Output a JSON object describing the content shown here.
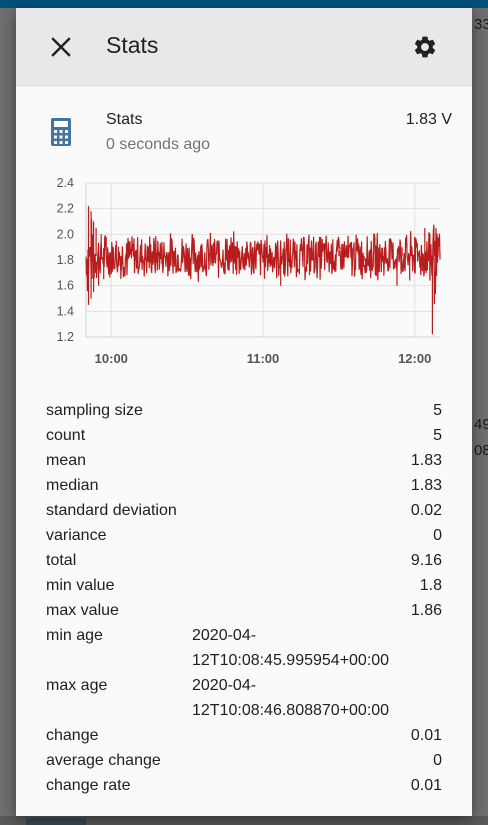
{
  "dialog": {
    "title": "Stats",
    "close_icon": "close-icon",
    "settings_icon": "gear-icon"
  },
  "entity": {
    "icon": "calculator-icon",
    "name": "Stats",
    "last_changed": "0 seconds ago",
    "state": "1.83 V"
  },
  "background_fragments": [
    "33",
    "49:",
    "08"
  ],
  "colors": {
    "header_bg": "#e8e8e8",
    "icon_blue": "#44739e",
    "series": "#b91c1c",
    "topbar": "#03507c"
  },
  "chart_data": {
    "type": "line",
    "x_ticks": [
      "10:00",
      "11:00",
      "12:00"
    ],
    "y_ticks": [
      "1.2",
      "1.4",
      "1.6",
      "1.8",
      "2.0",
      "2.2",
      "2.4"
    ],
    "ylim": [
      1.2,
      2.4
    ],
    "x_range": [
      "09:50",
      "12:10"
    ],
    "series": [
      {
        "baseline": 1.83,
        "points": [
          [
            "09:50",
            1.83
          ],
          [
            "09:51",
            2.22
          ],
          [
            "09:51",
            1.45
          ],
          [
            "09:52",
            2.18
          ],
          [
            "09:52",
            1.5
          ],
          [
            "09:53",
            2.1
          ],
          [
            "09:53",
            1.55
          ],
          [
            "09:54",
            2.05
          ],
          [
            "09:55",
            1.6
          ],
          [
            "09:56",
            2.0
          ],
          [
            "09:57",
            1.65
          ],
          [
            "09:58",
            1.98
          ],
          [
            "10:00",
            1.7
          ],
          [
            "10:02",
            1.95
          ],
          [
            "10:04",
            1.72
          ],
          [
            "10:06",
            1.93
          ],
          [
            "10:10",
            1.75
          ],
          [
            "10:15",
            1.9
          ],
          [
            "10:20",
            1.77
          ],
          [
            "10:30",
            1.88
          ],
          [
            "10:40",
            1.78
          ],
          [
            "10:50",
            1.89
          ],
          [
            "11:00",
            1.78
          ],
          [
            "11:05",
            1.9
          ],
          [
            "11:07",
            1.6
          ],
          [
            "11:10",
            1.86
          ],
          [
            "11:20",
            1.79
          ],
          [
            "11:30",
            1.87
          ],
          [
            "11:40",
            1.79
          ],
          [
            "11:50",
            1.88
          ],
          [
            "11:53",
            1.6
          ],
          [
            "11:55",
            1.9
          ],
          [
            "11:58",
            1.64
          ],
          [
            "12:00",
            1.98
          ],
          [
            "12:02",
            1.75
          ],
          [
            "12:04",
            2.05
          ],
          [
            "12:05",
            1.72
          ],
          [
            "12:06",
            2.0
          ],
          [
            "12:07",
            1.22
          ],
          [
            "12:08",
            1.95
          ],
          [
            "12:09",
            1.78
          ],
          [
            "12:10",
            1.85
          ]
        ]
      }
    ]
  },
  "attributes": [
    {
      "key": "sampling size",
      "value": "5"
    },
    {
      "key": "count",
      "value": "5"
    },
    {
      "key": "mean",
      "value": "1.83"
    },
    {
      "key": "median",
      "value": "1.83"
    },
    {
      "key": "standard deviation",
      "value": "0.02"
    },
    {
      "key": "variance",
      "value": "0"
    },
    {
      "key": "total",
      "value": "9.16"
    },
    {
      "key": "min value",
      "value": "1.8"
    },
    {
      "key": "max value",
      "value": "1.86"
    },
    {
      "key": "min age",
      "value": "2020-04-12T10:08:45.995954+00:00"
    },
    {
      "key": "max age",
      "value": "2020-04-12T10:08:46.808870+00:00"
    },
    {
      "key": "change",
      "value": "0.01"
    },
    {
      "key": "average change",
      "value": "0"
    },
    {
      "key": "change rate",
      "value": "0.01"
    }
  ]
}
